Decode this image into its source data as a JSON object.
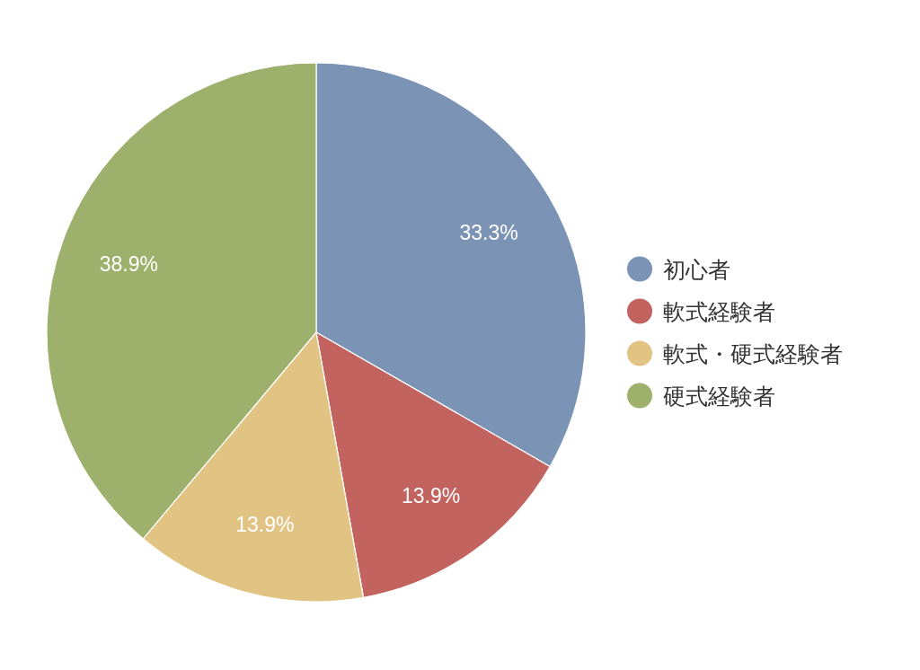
{
  "chart_data": {
    "type": "pie",
    "categories": [
      "初心者",
      "軟式経験者",
      "軟式・硬式経験者",
      "硬式経験者"
    ],
    "values": [
      33.3,
      13.9,
      13.9,
      38.9
    ],
    "colors": [
      "#7b93b4",
      "#c3635f",
      "#e1c484",
      "#9db06c"
    ],
    "value_labels": [
      "33.3%",
      "13.9%",
      "13.9%",
      "38.9%"
    ],
    "legend": "right"
  }
}
